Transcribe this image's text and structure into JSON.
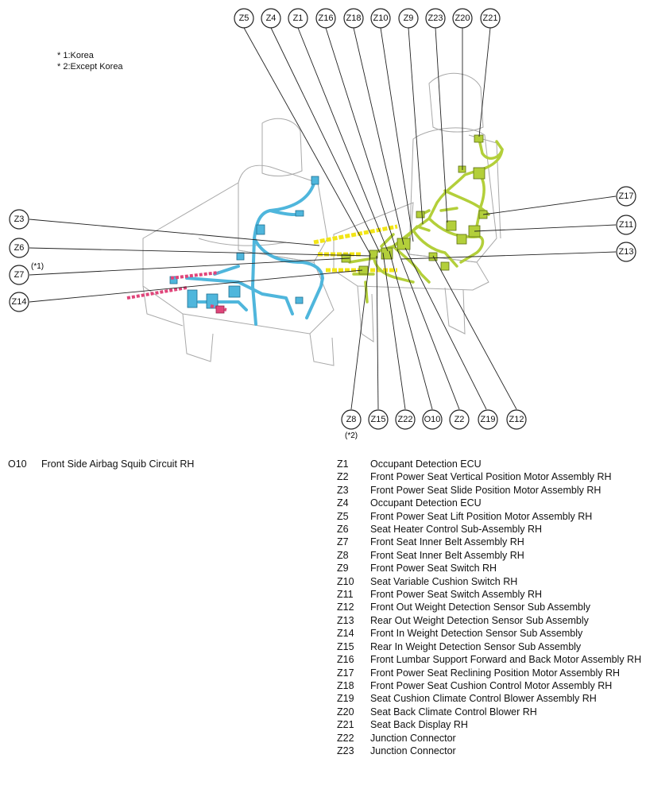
{
  "notes": [
    "* 1:Korea",
    "* 2:Except Korea"
  ],
  "callouts": {
    "Z5": "Z5",
    "Z4": "Z4",
    "Z1": "Z1",
    "Z16": "Z16",
    "Z18": "Z18",
    "Z10": "Z10",
    "Z9": "Z9",
    "Z23": "Z23",
    "Z20": "Z20",
    "Z21": "Z21",
    "Z17": "Z17",
    "Z11": "Z11",
    "Z13": "Z13",
    "Z3": "Z3",
    "Z6": "Z6",
    "Z7": "Z7",
    "Z14": "Z14",
    "Z8": "Z8",
    "Z15": "Z15",
    "Z22": "Z22",
    "O10": "O10",
    "Z2": "Z2",
    "Z19": "Z19",
    "Z12": "Z12"
  },
  "footnote_marks": {
    "z7": "(*1)",
    "z8": "(*2)"
  },
  "left_legend": [
    {
      "code": "O10",
      "desc": "Front Side Airbag Squib Circuit RH"
    }
  ],
  "right_legend": [
    {
      "code": "Z1",
      "desc": "Occupant Detection ECU"
    },
    {
      "code": "Z2",
      "desc": "Front Power Seat Vertical Position Motor Assembly RH"
    },
    {
      "code": "Z3",
      "desc": "Front Power Seat Slide Position Motor Assembly RH"
    },
    {
      "code": "Z4",
      "desc": "Occupant Detection ECU"
    },
    {
      "code": "Z5",
      "desc": "Front Power Seat Lift Position Motor Assembly RH"
    },
    {
      "code": "Z6",
      "desc": "Seat Heater Control Sub-Assembly RH"
    },
    {
      "code": "Z7",
      "desc": "Front Seat Inner Belt Assembly RH"
    },
    {
      "code": "Z8",
      "desc": "Front Seat Inner Belt Assembly RH"
    },
    {
      "code": "Z9",
      "desc": "Front Power Seat Switch RH"
    },
    {
      "code": "Z10",
      "desc": "Seat Variable Cushion Switch RH"
    },
    {
      "code": "Z11",
      "desc": "Front Power Seat Switch Assembly RH"
    },
    {
      "code": "Z12",
      "desc": "Front Out Weight Detection Sensor Sub Assembly"
    },
    {
      "code": "Z13",
      "desc": "Rear Out Weight Detection Sensor Sub Assembly"
    },
    {
      "code": "Z14",
      "desc": "Front In Weight Detection Sensor Sub Assembly"
    },
    {
      "code": "Z15",
      "desc": "Rear In Weight Detection Sensor Sub Assembly"
    },
    {
      "code": "Z16",
      "desc": "Front Lumbar Support Forward and Back Motor Assembly RH"
    },
    {
      "code": "Z17",
      "desc": "Front Power Seat Reclining Position Motor Assembly RH"
    },
    {
      "code": "Z18",
      "desc": "Front Power Seat Cushion Control Motor Assembly RH"
    },
    {
      "code": "Z19",
      "desc": "Seat Cushion Climate Control Blower Assembly RH"
    },
    {
      "code": "Z20",
      "desc": "Seat Back Climate Control Blower RH"
    },
    {
      "code": "Z21",
      "desc": "Seat Back Display RH"
    },
    {
      "code": "Z22",
      "desc": "Junction Connector"
    },
    {
      "code": "Z23",
      "desc": "Junction Connector"
    }
  ],
  "colors": {
    "harness_green": "#b3cf3a",
    "harness_blue": "#4fb6dc",
    "harness_pink": "#e0457a",
    "harness_yellow": "#f2e516",
    "seat_outline": "#a9a9a9"
  }
}
